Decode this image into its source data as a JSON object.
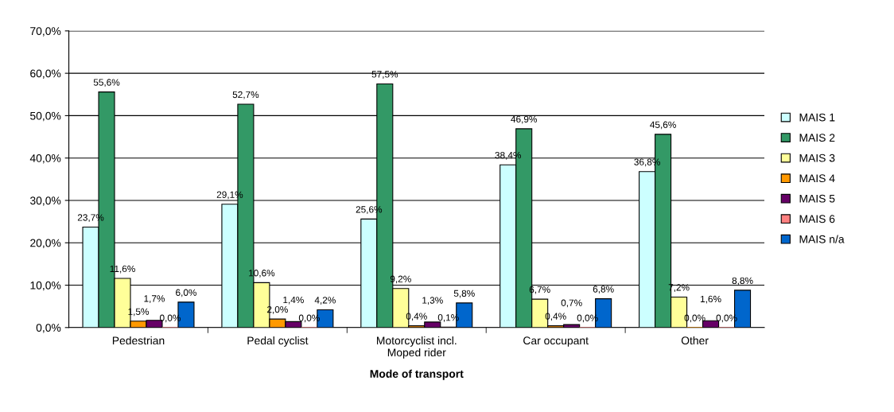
{
  "chart_data": {
    "type": "bar",
    "xlabel": "Mode of transport",
    "categories": [
      "Pedestrian",
      "Pedal cyclist",
      "Motorcyclist incl.\nMoped rider",
      "Car occupant",
      "Other"
    ],
    "series": [
      {
        "name": "MAIS 1",
        "color": "#ccffff",
        "values": [
          23.7,
          29.1,
          25.6,
          38.4,
          36.8
        ],
        "value_labels": [
          "23,7%",
          "29,1%",
          "25,6%",
          "38,4%",
          "36,8%"
        ]
      },
      {
        "name": "MAIS 2",
        "color": "#339966",
        "values": [
          55.6,
          52.7,
          57.5,
          46.9,
          45.6
        ],
        "value_labels": [
          "55,6%",
          "52,7%",
          "57,5%",
          "46,9%",
          "45,6%"
        ]
      },
      {
        "name": "MAIS 3",
        "color": "#ffff99",
        "values": [
          11.6,
          10.6,
          9.2,
          6.7,
          7.2
        ],
        "value_labels": [
          "11,6%",
          "10,6%",
          "9,2%",
          "6,7%",
          "7,2%"
        ]
      },
      {
        "name": "MAIS 4",
        "color": "#ff9900",
        "values": [
          1.5,
          2.0,
          0.4,
          0.4,
          0.0
        ],
        "value_labels": [
          "1,5%",
          "2,0%",
          "0,4%",
          "0,4%",
          "0,0%"
        ]
      },
      {
        "name": "MAIS 5",
        "color": "#660066",
        "values": [
          1.7,
          1.4,
          1.3,
          0.7,
          1.6
        ],
        "value_labels": [
          "1,7%",
          "1,4%",
          "1,3%",
          "0,7%",
          "1,6%"
        ]
      },
      {
        "name": "MAIS 6",
        "color": "#ff8080",
        "values": [
          0.0,
          0.0,
          0.1,
          0.0,
          0.0
        ],
        "value_labels": [
          "0,0%",
          "0,0%",
          "0,1%",
          "0,0%",
          "0,0%"
        ]
      },
      {
        "name": "MAIS n/a",
        "color": "#0066cc",
        "values": [
          6.0,
          4.2,
          5.8,
          6.8,
          8.8
        ],
        "value_labels": [
          "6,0%",
          "4,2%",
          "5,8%",
          "6,8%",
          "8,8%"
        ]
      }
    ],
    "ylim": [
      0,
      70
    ],
    "yticks": [
      {
        "value": 0,
        "label": "0,0%"
      },
      {
        "value": 10,
        "label": "10,0%"
      },
      {
        "value": 20,
        "label": "20,0%"
      },
      {
        "value": 30,
        "label": "30,0%"
      },
      {
        "value": 40,
        "label": "40,0%"
      },
      {
        "value": 50,
        "label": "50,0%"
      },
      {
        "value": 60,
        "label": "60,0%"
      },
      {
        "value": 70,
        "label": "70,0%"
      }
    ],
    "grid": "y",
    "legend": "right"
  }
}
